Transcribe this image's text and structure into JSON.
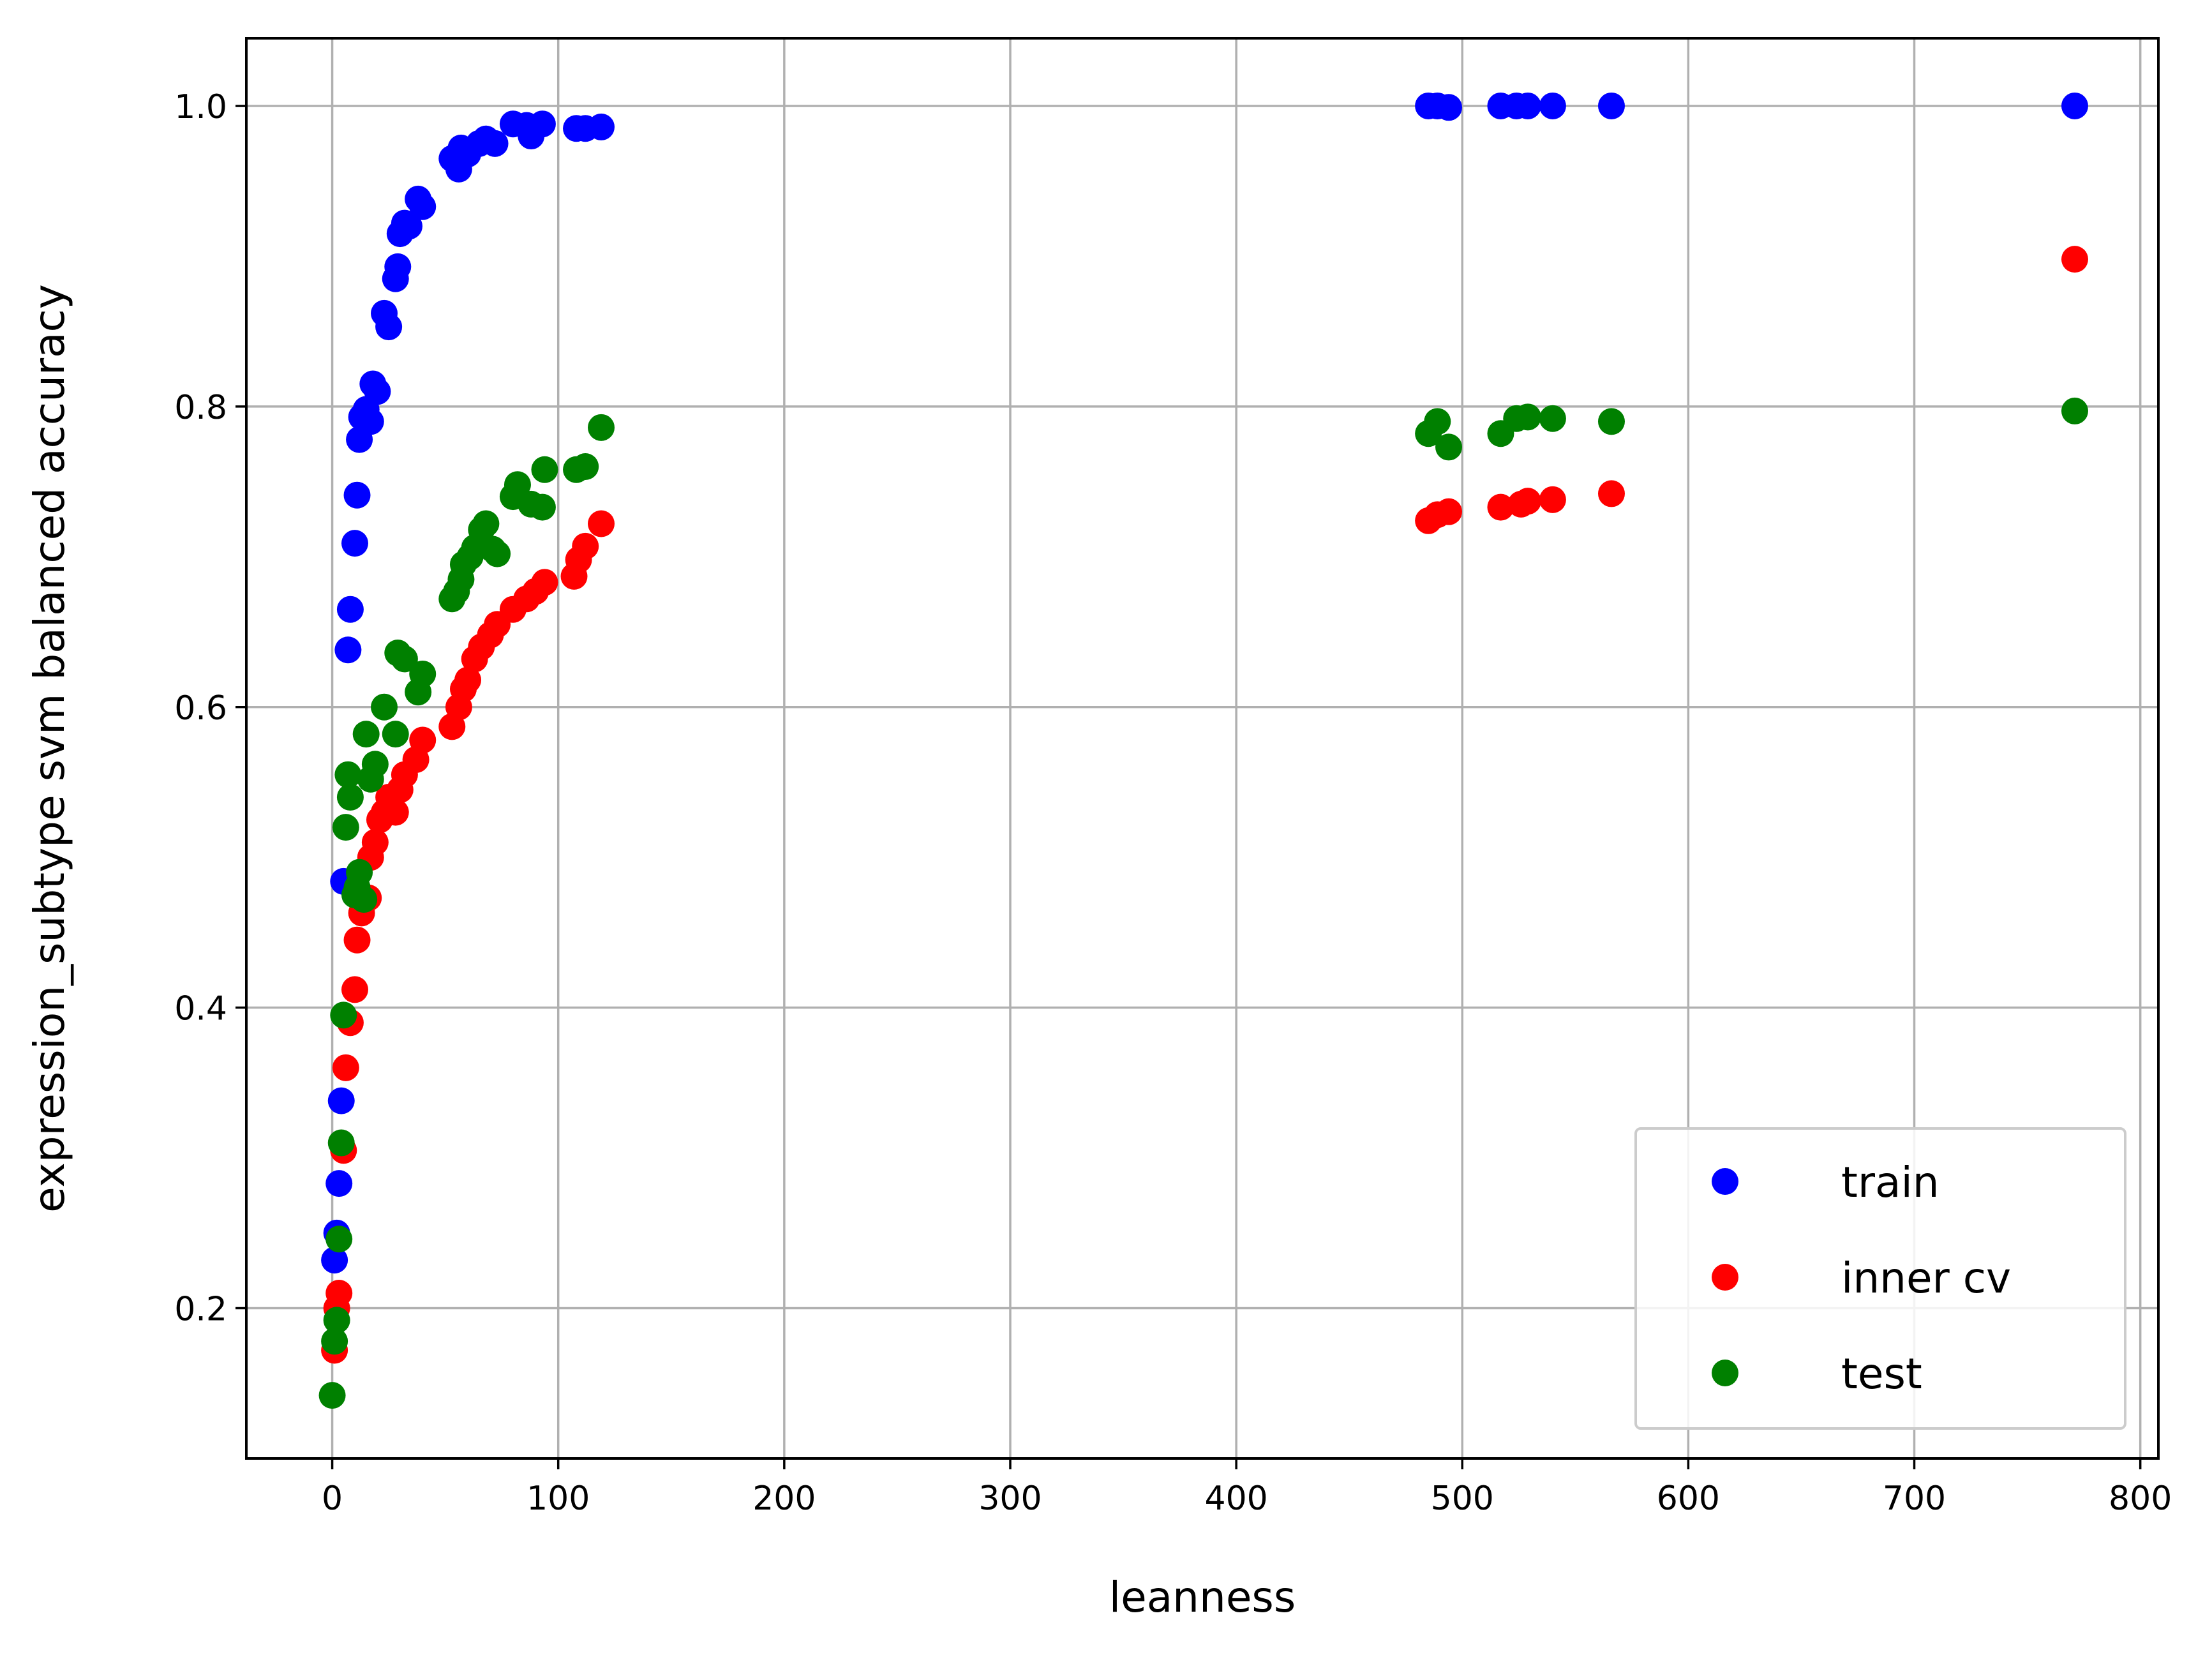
{
  "chart_data": {
    "type": "scatter",
    "title": "",
    "xlabel": "leanness",
    "ylabel": "expression_subtype svm balanced accuracy",
    "xlim": [
      -38,
      808
    ],
    "ylim": [
      0.1,
      1.045
    ],
    "xticks": [
      0,
      100,
      200,
      300,
      400,
      500,
      600,
      700,
      800
    ],
    "xtick_labels": [
      "0",
      "100",
      "200",
      "300",
      "400",
      "500",
      "600",
      "700",
      "800"
    ],
    "yticks": [
      0.2,
      0.4,
      0.6,
      0.8,
      1.0
    ],
    "ytick_labels": [
      "0.2",
      "0.4",
      "0.6",
      "0.8",
      "1.0"
    ],
    "grid": true,
    "legend_position": "lower-right",
    "series": [
      {
        "name": "train",
        "color": "#0000ff",
        "points": [
          [
            1,
            0.232
          ],
          [
            2,
            0.25
          ],
          [
            3,
            0.283
          ],
          [
            4,
            0.338
          ],
          [
            5,
            0.484
          ],
          [
            7,
            0.638
          ],
          [
            8,
            0.665
          ],
          [
            10,
            0.709
          ],
          [
            11,
            0.741
          ],
          [
            12,
            0.778
          ],
          [
            13,
            0.793
          ],
          [
            15,
            0.798
          ],
          [
            17,
            0.79
          ],
          [
            18,
            0.815
          ],
          [
            20,
            0.81
          ],
          [
            23,
            0.862
          ],
          [
            25,
            0.853
          ],
          [
            28,
            0.885
          ],
          [
            29,
            0.893
          ],
          [
            30,
            0.915
          ],
          [
            32,
            0.922
          ],
          [
            34,
            0.92
          ],
          [
            38,
            0.938
          ],
          [
            40,
            0.933
          ],
          [
            53,
            0.965
          ],
          [
            56,
            0.958
          ],
          [
            57,
            0.972
          ],
          [
            60,
            0.968
          ],
          [
            65,
            0.975
          ],
          [
            68,
            0.978
          ],
          [
            72,
            0.975
          ],
          [
            80,
            0.988
          ],
          [
            86,
            0.987
          ],
          [
            88,
            0.98
          ],
          [
            93,
            0.988
          ],
          [
            108,
            0.985
          ],
          [
            112,
            0.985
          ],
          [
            119,
            0.986
          ],
          [
            485,
            1.0
          ],
          [
            489,
            1.0
          ],
          [
            494,
            0.999
          ],
          [
            517,
            1.0
          ],
          [
            524,
            1.0
          ],
          [
            529,
            1.0
          ],
          [
            540,
            1.0
          ],
          [
            566,
            1.0
          ],
          [
            771,
            1.0
          ]
        ]
      },
      {
        "name": "inner cv",
        "color": "#ff0000",
        "points": [
          [
            1,
            0.172
          ],
          [
            2,
            0.2
          ],
          [
            3,
            0.21
          ],
          [
            5,
            0.305
          ],
          [
            6,
            0.36
          ],
          [
            8,
            0.39
          ],
          [
            10,
            0.412
          ],
          [
            11,
            0.445
          ],
          [
            13,
            0.463
          ],
          [
            16,
            0.473
          ],
          [
            17,
            0.5
          ],
          [
            19,
            0.51
          ],
          [
            21,
            0.525
          ],
          [
            23,
            0.53
          ],
          [
            25,
            0.54
          ],
          [
            28,
            0.53
          ],
          [
            30,
            0.545
          ],
          [
            32,
            0.555
          ],
          [
            37,
            0.565
          ],
          [
            40,
            0.578
          ],
          [
            53,
            0.587
          ],
          [
            56,
            0.6
          ],
          [
            58,
            0.612
          ],
          [
            60,
            0.618
          ],
          [
            63,
            0.632
          ],
          [
            66,
            0.64
          ],
          [
            70,
            0.648
          ],
          [
            73,
            0.655
          ],
          [
            80,
            0.665
          ],
          [
            86,
            0.672
          ],
          [
            90,
            0.677
          ],
          [
            94,
            0.683
          ],
          [
            107,
            0.687
          ],
          [
            109,
            0.698
          ],
          [
            112,
            0.707
          ],
          [
            119,
            0.722
          ],
          [
            485,
            0.724
          ],
          [
            489,
            0.728
          ],
          [
            494,
            0.73
          ],
          [
            517,
            0.733
          ],
          [
            526,
            0.735
          ],
          [
            529,
            0.737
          ],
          [
            540,
            0.738
          ],
          [
            566,
            0.742
          ],
          [
            771,
            0.898
          ]
        ]
      },
      {
        "name": "test",
        "color": "#008000",
        "points": [
          [
            0,
            0.142
          ],
          [
            1,
            0.178
          ],
          [
            2,
            0.192
          ],
          [
            3,
            0.246
          ],
          [
            4,
            0.31
          ],
          [
            5,
            0.395
          ],
          [
            6,
            0.52
          ],
          [
            7,
            0.555
          ],
          [
            8,
            0.54
          ],
          [
            10,
            0.475
          ],
          [
            11,
            0.48
          ],
          [
            12,
            0.49
          ],
          [
            14,
            0.472
          ],
          [
            15,
            0.582
          ],
          [
            17,
            0.552
          ],
          [
            19,
            0.562
          ],
          [
            23,
            0.6
          ],
          [
            28,
            0.582
          ],
          [
            29,
            0.636
          ],
          [
            32,
            0.632
          ],
          [
            38,
            0.61
          ],
          [
            40,
            0.622
          ],
          [
            53,
            0.672
          ],
          [
            55,
            0.677
          ],
          [
            57,
            0.685
          ],
          [
            58,
            0.695
          ],
          [
            61,
            0.7
          ],
          [
            63,
            0.706
          ],
          [
            66,
            0.718
          ],
          [
            68,
            0.722
          ],
          [
            71,
            0.705
          ],
          [
            73,
            0.702
          ],
          [
            80,
            0.74
          ],
          [
            82,
            0.748
          ],
          [
            88,
            0.735
          ],
          [
            93,
            0.733
          ],
          [
            94,
            0.758
          ],
          [
            108,
            0.758
          ],
          [
            112,
            0.76
          ],
          [
            119,
            0.786
          ],
          [
            485,
            0.782
          ],
          [
            489,
            0.79
          ],
          [
            494,
            0.773
          ],
          [
            517,
            0.782
          ],
          [
            524,
            0.792
          ],
          [
            529,
            0.793
          ],
          [
            540,
            0.792
          ],
          [
            566,
            0.79
          ],
          [
            771,
            0.797
          ]
        ]
      }
    ]
  }
}
